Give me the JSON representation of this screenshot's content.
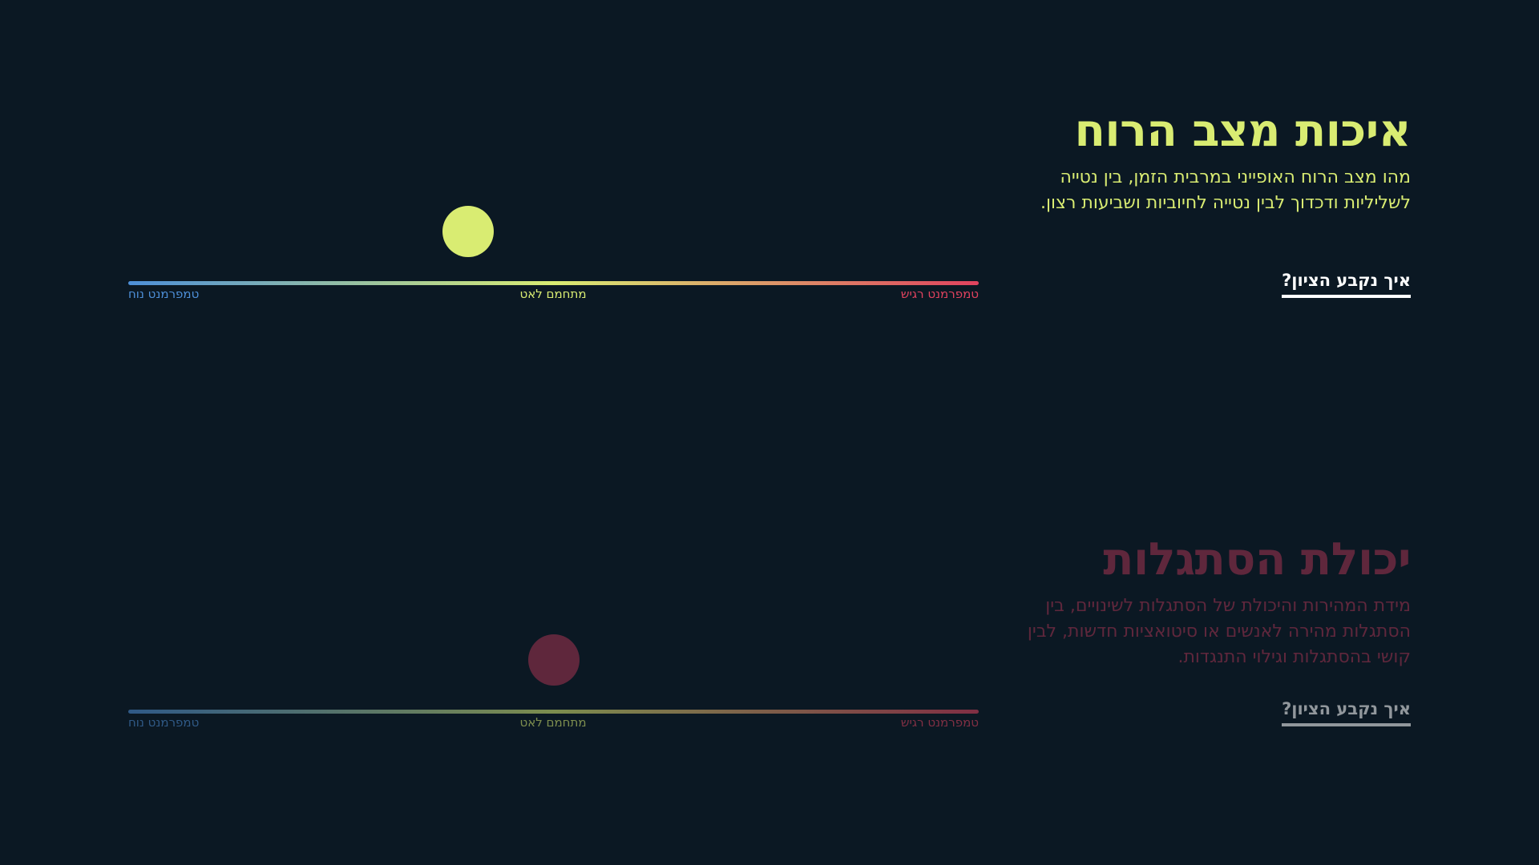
{
  "colors": {
    "background": "#0b1823",
    "mood_accent": "#d9ec72",
    "adapt_accent": "#a53452",
    "calm": "#4d8fd8",
    "mid": "#d9ec72",
    "sensitive": "#e0425e"
  },
  "sections": [
    {
      "title": "איכות מצב הרוח",
      "description": "מהו מצב הרוח האופייני במרבית הזמן, בין נטייה לשליליות ודכדוך לבין נטייה לחיוביות ושביעות רצון.",
      "link_label": "איך נקבע הציון?",
      "scale": {
        "left_label": "טמפרמנט נוח",
        "middle_label": "מתחמם לאט",
        "right_label": "טמפרמנט רגיש",
        "value": 0.4
      }
    },
    {
      "title": "יכולת הסתגלות",
      "description": "מידת המהירות והיכולת של הסתגלות לשינויים, בין הסתגלות מהירה לאנשים או סיטואציות חדשות, לבין קושי בהסתגלות וגילוי התנגדות.",
      "link_label": "איך נקבע הציון?",
      "scale": {
        "left_label": "טמפרמנט נוח",
        "middle_label": "מתחמם לאט",
        "right_label": "טמפרמנט רגיש",
        "value": 0.5
      }
    }
  ]
}
